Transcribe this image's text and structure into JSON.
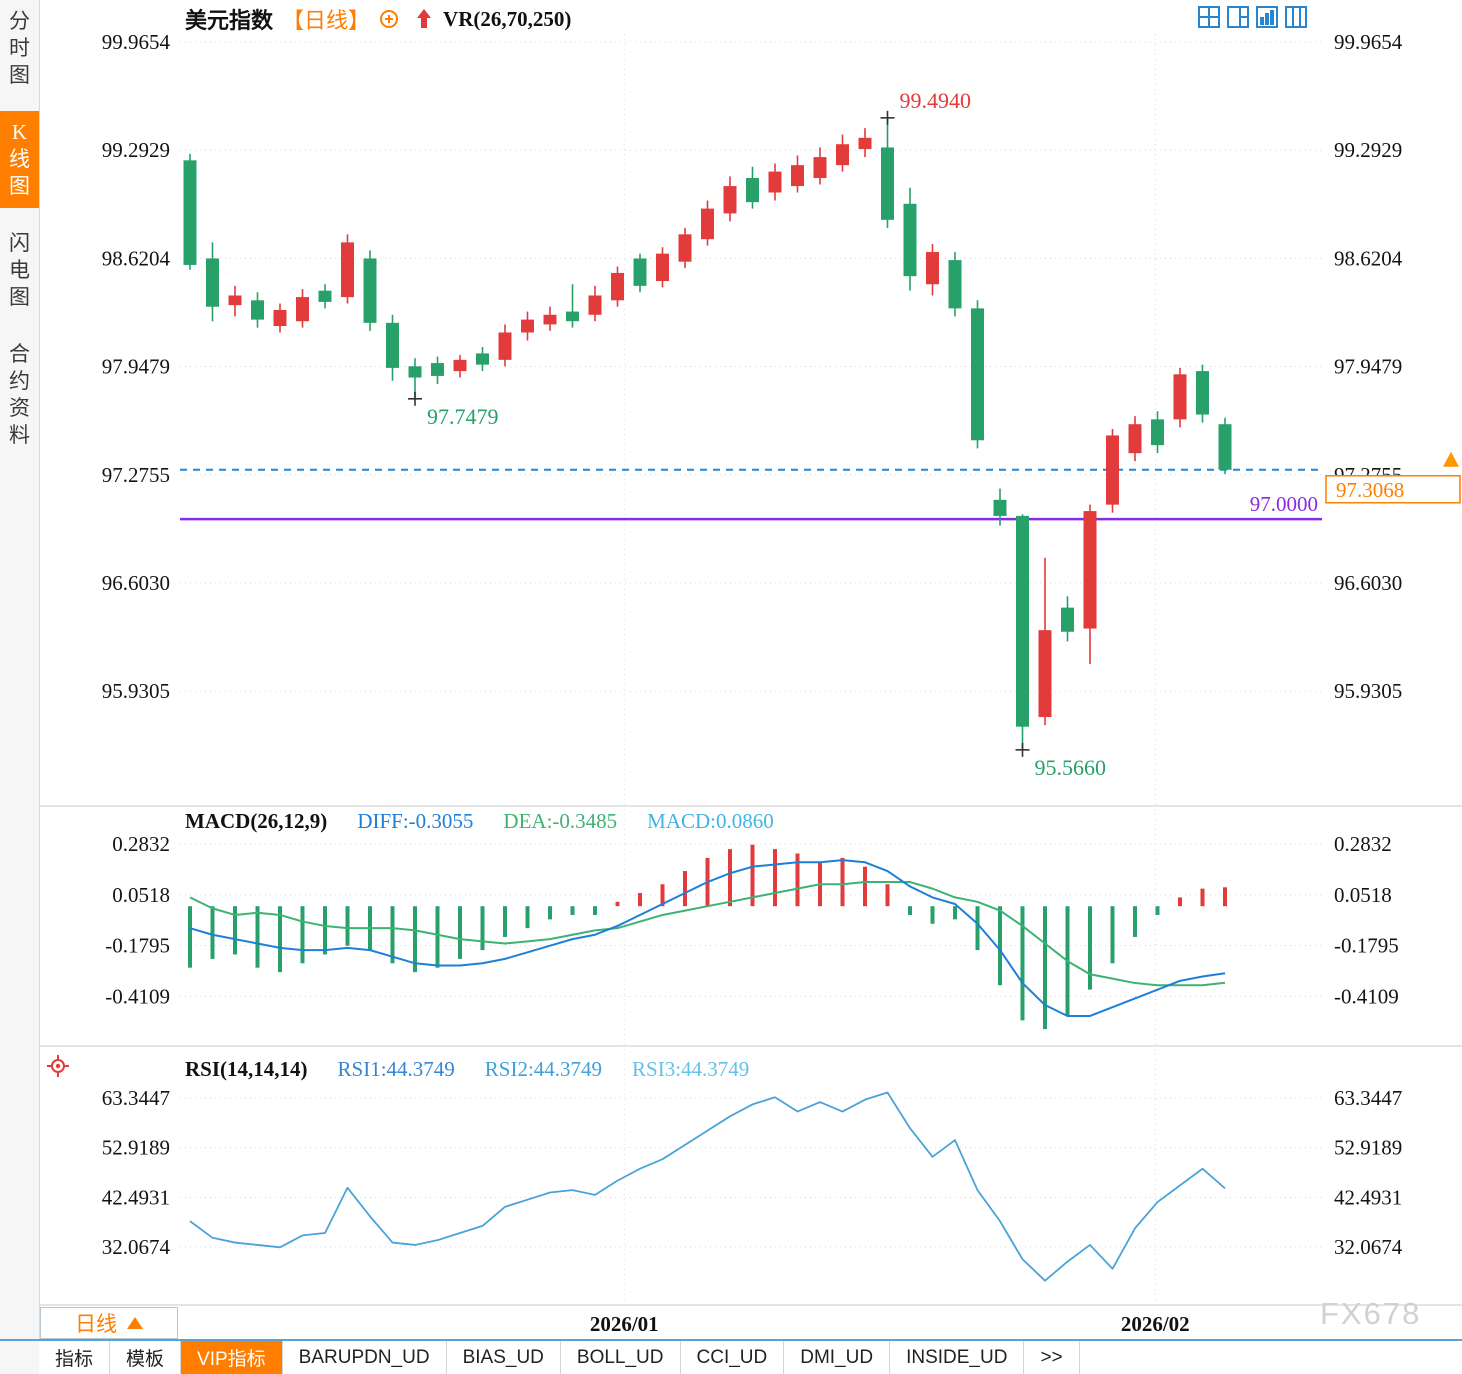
{
  "window": {
    "watermark": "FX678"
  },
  "sidebar": {
    "items": [
      {
        "label": "分时图"
      },
      {
        "label": "K线图",
        "active": true
      },
      {
        "label": "闪电图"
      },
      {
        "label": "合约资料"
      }
    ]
  },
  "header": {
    "symbol": "美元指数",
    "period_tag": "【日线】",
    "indicator_label": "VR(26,70,250)"
  },
  "macd_header": {
    "title": "MACD(26,12,9)",
    "diff": "DIFF:-0.3055",
    "dea": "DEA:-0.3485",
    "macd": "MACD:0.0860"
  },
  "rsi_header": {
    "title": "RSI(14,14,14)",
    "rsi1": "RSI1:44.3749",
    "rsi2": "RSI2:44.3749",
    "rsi3": "RSI3:44.3749"
  },
  "bottom": {
    "period": "日线",
    "tabs": [
      "指标",
      "模板",
      "VIP指标",
      "BARUPDN_UD",
      "BIAS_UD",
      "BOLL_UD",
      "CCI_UD",
      "DMI_UD",
      "INSIDE_UD",
      ">>"
    ],
    "active_tab": "VIP指标"
  },
  "chart_data": {
    "type": "candlestick",
    "title": "美元指数 日线",
    "x_labels": [
      {
        "text": "2026/01",
        "index": 19.3
      },
      {
        "text": "2026/02",
        "index": 42.9
      }
    ],
    "panels": [
      {
        "name": "price",
        "type": "candlestick",
        "y_ticks": [
          99.9654,
          99.2929,
          98.6204,
          97.9479,
          97.2755,
          96.603,
          95.9305
        ],
        "up_color": "#e23b3b",
        "down_color": "#27a06a",
        "candles": [
          [
            99.23,
            99.27,
            98.55,
            98.58
          ],
          [
            98.62,
            98.72,
            98.23,
            98.32
          ],
          [
            98.33,
            98.45,
            98.26,
            98.39
          ],
          [
            98.36,
            98.41,
            98.19,
            98.24
          ],
          [
            98.2,
            98.34,
            98.16,
            98.3
          ],
          [
            98.23,
            98.43,
            98.19,
            98.38
          ],
          [
            98.42,
            98.46,
            98.31,
            98.35
          ],
          [
            98.38,
            98.77,
            98.34,
            98.72
          ],
          [
            98.62,
            98.67,
            98.17,
            98.22
          ],
          [
            98.22,
            98.27,
            97.86,
            97.94
          ],
          [
            97.95,
            98.0,
            97.748,
            97.88
          ],
          [
            97.97,
            98.01,
            97.84,
            97.89
          ],
          [
            97.92,
            98.02,
            97.88,
            97.99
          ],
          [
            98.03,
            98.07,
            97.92,
            97.96
          ],
          [
            97.99,
            98.21,
            97.95,
            98.16
          ],
          [
            98.16,
            98.29,
            98.11,
            98.24
          ],
          [
            98.21,
            98.32,
            98.17,
            98.27
          ],
          [
            98.29,
            98.46,
            98.19,
            98.23
          ],
          [
            98.27,
            98.45,
            98.23,
            98.39
          ],
          [
            98.36,
            98.57,
            98.32,
            98.53
          ],
          [
            98.62,
            98.65,
            98.41,
            98.45
          ],
          [
            98.48,
            98.69,
            98.44,
            98.65
          ],
          [
            98.6,
            98.81,
            98.56,
            98.77
          ],
          [
            98.74,
            98.98,
            98.7,
            98.93
          ],
          [
            98.9,
            99.13,
            98.85,
            99.07
          ],
          [
            99.12,
            99.19,
            98.93,
            98.97
          ],
          [
            99.03,
            99.21,
            98.98,
            99.16
          ],
          [
            99.07,
            99.26,
            99.03,
            99.2
          ],
          [
            99.12,
            99.31,
            99.08,
            99.25
          ],
          [
            99.2,
            99.39,
            99.16,
            99.33
          ],
          [
            99.3,
            99.43,
            99.25,
            99.37
          ],
          [
            99.31,
            99.494,
            98.81,
            98.86
          ],
          [
            98.96,
            99.06,
            98.42,
            98.51
          ],
          [
            98.46,
            98.71,
            98.39,
            98.66
          ],
          [
            98.61,
            98.66,
            98.26,
            98.31
          ],
          [
            98.31,
            98.36,
            97.44,
            97.49
          ],
          [
            97.12,
            97.19,
            96.96,
            97.02
          ],
          [
            97.02,
            97.03,
            95.566,
            95.71
          ],
          [
            95.77,
            96.76,
            95.72,
            96.31
          ],
          [
            96.45,
            96.52,
            96.24,
            96.3
          ],
          [
            96.32,
            97.09,
            96.1,
            97.05
          ],
          [
            97.09,
            97.56,
            97.04,
            97.52
          ],
          [
            97.41,
            97.64,
            97.36,
            97.59
          ],
          [
            97.62,
            97.67,
            97.41,
            97.46
          ],
          [
            97.62,
            97.94,
            97.57,
            97.9
          ],
          [
            97.92,
            97.96,
            97.6,
            97.65
          ],
          [
            97.59,
            97.63,
            97.28,
            97.3068
          ]
        ],
        "annotations": [
          {
            "text": "99.4940",
            "price": 99.494,
            "candle_index": 31,
            "color": "#e23b3b",
            "placement": "above"
          },
          {
            "text": "97.7479",
            "price": 97.7479,
            "candle_index": 10,
            "color": "#27a06a",
            "placement": "below"
          },
          {
            "text": "95.5660",
            "price": 95.566,
            "candle_index": 37,
            "color": "#27a06a",
            "placement": "below"
          }
        ],
        "hlines": [
          {
            "value": 97.0,
            "style": "solid",
            "color": "#8a2be2",
            "label": "97.0000"
          },
          {
            "value": 97.3068,
            "style": "dashed",
            "color": "#1e86dc",
            "tag_label": "97.3068",
            "tag_color": "#ff7e00"
          }
        ]
      },
      {
        "name": "macd",
        "type": "macd",
        "y_ticks": [
          0.2832,
          0.0518,
          -0.1795,
          -0.4109
        ],
        "diff_color": "#1e7fd8",
        "dea_color": "#3cb371",
        "diff": [
          -0.1,
          -0.13,
          -0.15,
          -0.17,
          -0.19,
          -0.2,
          -0.2,
          -0.19,
          -0.2,
          -0.23,
          -0.26,
          -0.27,
          -0.27,
          -0.26,
          -0.24,
          -0.21,
          -0.18,
          -0.15,
          -0.13,
          -0.09,
          -0.04,
          0.01,
          0.06,
          0.11,
          0.15,
          0.18,
          0.19,
          0.2,
          0.2,
          0.21,
          0.2,
          0.16,
          0.09,
          0.04,
          0.01,
          -0.08,
          -0.2,
          -0.35,
          -0.45,
          -0.5,
          -0.5,
          -0.46,
          -0.42,
          -0.38,
          -0.34,
          -0.32,
          -0.3055
        ],
        "dea": [
          0.04,
          -0.01,
          -0.04,
          -0.03,
          -0.04,
          -0.07,
          -0.09,
          -0.1,
          -0.1,
          -0.1,
          -0.11,
          -0.13,
          -0.15,
          -0.16,
          -0.17,
          -0.16,
          -0.15,
          -0.13,
          -0.11,
          -0.1,
          -0.07,
          -0.04,
          -0.02,
          0.0,
          0.02,
          0.04,
          0.06,
          0.08,
          0.1,
          0.1,
          0.11,
          0.11,
          0.11,
          0.08,
          0.04,
          0.02,
          -0.02,
          -0.09,
          -0.17,
          -0.25,
          -0.31,
          -0.33,
          -0.35,
          -0.36,
          -0.36,
          -0.36,
          -0.3485
        ],
        "hist": [
          -0.28,
          -0.24,
          -0.22,
          -0.28,
          -0.3,
          -0.26,
          -0.22,
          -0.18,
          -0.2,
          -0.26,
          -0.3,
          -0.28,
          -0.24,
          -0.2,
          -0.14,
          -0.1,
          -0.06,
          -0.04,
          -0.04,
          0.02,
          0.06,
          0.1,
          0.16,
          0.22,
          0.26,
          0.28,
          0.26,
          0.24,
          0.2,
          0.22,
          0.18,
          0.1,
          -0.04,
          -0.08,
          -0.06,
          -0.2,
          -0.36,
          -0.52,
          -0.56,
          -0.5,
          -0.38,
          -0.26,
          -0.14,
          -0.04,
          0.04,
          0.08,
          0.086
        ]
      },
      {
        "name": "rsi",
        "type": "line",
        "y_ticks": [
          63.3447,
          52.9189,
          42.4931,
          32.0674
        ],
        "color": "#4aa3d8",
        "values": [
          37.5,
          34,
          33,
          32.5,
          32,
          34.5,
          35,
          44.5,
          38.5,
          33,
          32.5,
          33.5,
          35,
          36.5,
          40.5,
          42,
          43.5,
          44,
          43,
          46,
          48.5,
          50.5,
          53.5,
          56.5,
          59.5,
          62,
          63.5,
          60.5,
          62.5,
          60.5,
          63,
          64.5,
          57,
          51,
          54.5,
          44,
          37.5,
          29.5,
          25,
          29,
          32.5,
          27.5,
          36,
          41.5,
          45,
          48.5,
          44.3749
        ]
      }
    ]
  }
}
